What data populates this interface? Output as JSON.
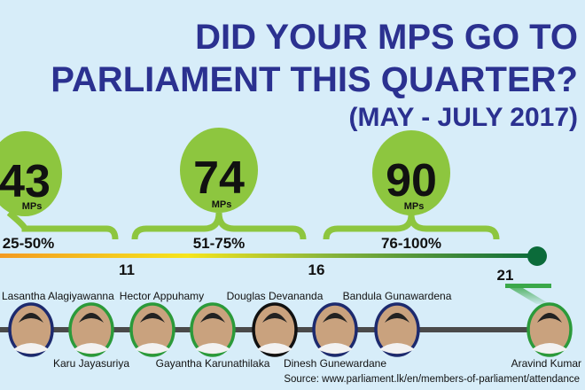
{
  "title": {
    "line1": "DID YOUR MPS GO TO",
    "line2": "PARLIAMENT THIS QUARTER?",
    "line3": "(MAY - JULY 2017)"
  },
  "groups": [
    {
      "count": "43",
      "unit": "MPs",
      "range": "25-50%"
    },
    {
      "count": "74",
      "unit": "MPs",
      "range": "51-75%"
    },
    {
      "count": "90",
      "unit": "MPs",
      "range": "76-100%"
    }
  ],
  "scale_ticks": [
    "11",
    "16",
    "21"
  ],
  "mps": [
    {
      "name": "Lasantha Alagiyawanna",
      "border": "#1d2a6e"
    },
    {
      "name": "Karu Jayasuriya",
      "border": "#2b9a3a"
    },
    {
      "name": "Hector Appuhamy",
      "border": "#2b9a3a"
    },
    {
      "name": "Gayantha Karunathilaka",
      "border": "#2b9a3a"
    },
    {
      "name": "Douglas Devananda",
      "border": "#111111"
    },
    {
      "name": "Dinesh Gunewardane",
      "border": "#1d2a6e"
    },
    {
      "name": "Bandula Gunawardena",
      "border": "#1d2a6e"
    },
    {
      "name": "Aravind Kumar",
      "border": "#2b9a3a"
    }
  ],
  "source": "Source: www.parliament.lk/en/members-of-parliament/attendance",
  "colors": {
    "title": "#2b3190",
    "bubble": "#8dc63f",
    "dot": "#0b6b3a"
  }
}
